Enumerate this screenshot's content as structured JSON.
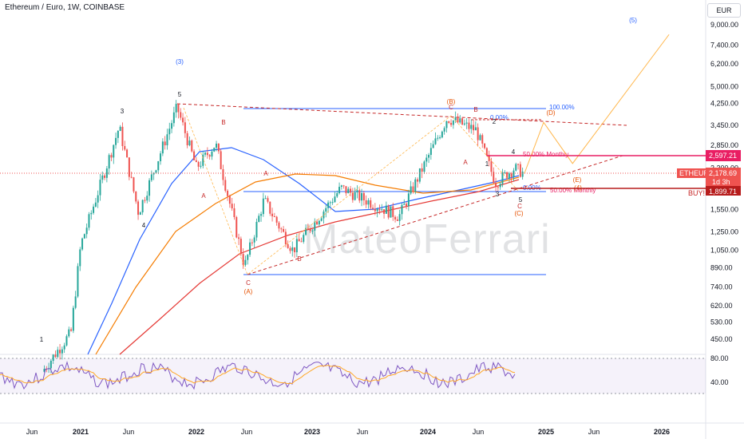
{
  "header": {
    "title": "Ethereum / Euro, 1W, COINBASE"
  },
  "currency_button": "EUR",
  "watermark": "MateoFerrari",
  "price_tags": {
    "resistance": "2,597.21",
    "symbol": "ETHEUR",
    "last": "2,178.69",
    "countdown": "1d 3h",
    "buy_level": "1,899.71",
    "buy_text": "BUY!"
  },
  "colors": {
    "up": "#26a69a",
    "down": "#ef5350",
    "ma_blue": "#2962ff",
    "ma_orange": "#f57c00",
    "ma_red": "#e53935",
    "fib": "#2962ff",
    "projection": "#ffb74d",
    "wave": "#131722",
    "wave_corr": "#e65100",
    "magenta": "#e91e63",
    "rsi": "#7e57c2",
    "rsi_ma": "#ffa726"
  },
  "chart_data": {
    "type": "candlestick",
    "title": "Ethereum / Euro, 1W, COINBASE",
    "scale": "log",
    "ylim": [
      400,
      11000
    ],
    "x_ticks": [
      "Jun",
      "2021",
      "Jun",
      "2022",
      "Jun",
      "2023",
      "Jun",
      "2024",
      "Jun",
      "2025",
      "Jun",
      "2026"
    ],
    "y_ticks": [
      "9,000.00",
      "7,400.00",
      "6,200.00",
      "5,000.00",
      "4,250.00",
      "3,450.00",
      "2,850.00",
      "2,300.00",
      "1,900.00",
      "1,550.00",
      "1,250.00",
      "1,050.00",
      "890.00",
      "740.00",
      "620.00",
      "530.00",
      "450.00"
    ],
    "price_path": [
      [
        "2020-09",
        330
      ],
      [
        "2020-12",
        480
      ],
      [
        "2021-01",
        1100
      ],
      [
        "2021-05",
        3400
      ],
      [
        "2021-07",
        1500
      ],
      [
        "2021-11",
        4100
      ],
      [
        "2022-01",
        2300
      ],
      [
        "2022-03",
        2900
      ],
      [
        "2022-06",
        900
      ],
      [
        "2022-08",
        1700
      ],
      [
        "2022-11",
        1050
      ],
      [
        "2023-04",
        1900
      ],
      [
        "2023-10",
        1450
      ],
      [
        "2024-03",
        3700
      ],
      [
        "2024-06",
        3300
      ],
      [
        "2024-08",
        2000
      ],
      [
        "2024-10",
        2300
      ],
      [
        "2024-11",
        2180
      ]
    ],
    "projection_path": [
      [
        "2024-11",
        2180
      ],
      [
        "2025-01",
        3550
      ],
      [
        "2025-04",
        2400
      ],
      [
        "2026-02",
        8200
      ]
    ],
    "fib_levels": [
      {
        "label": "100.00%",
        "value": 4000
      },
      {
        "label": "50.00% Monthly",
        "value": 2000
      },
      {
        "label": "0.00%",
        "value": 840
      }
    ],
    "wave_labels": [
      "1",
      "3",
      "4",
      "5",
      "(3)",
      "(5)",
      "A",
      "B",
      "C",
      "(A)",
      "(B)",
      "(C)",
      "(D)",
      "(E)",
      "(4)",
      "1",
      "2",
      "3",
      "4",
      "5"
    ],
    "fib_texts": [
      "0.00%",
      "50.00% Monthly",
      "100.00%",
      "50.00% Monthly",
      "0.00%"
    ],
    "rsi": {
      "levels": [
        80,
        40
      ],
      "range": [
        20,
        90
      ]
    }
  }
}
